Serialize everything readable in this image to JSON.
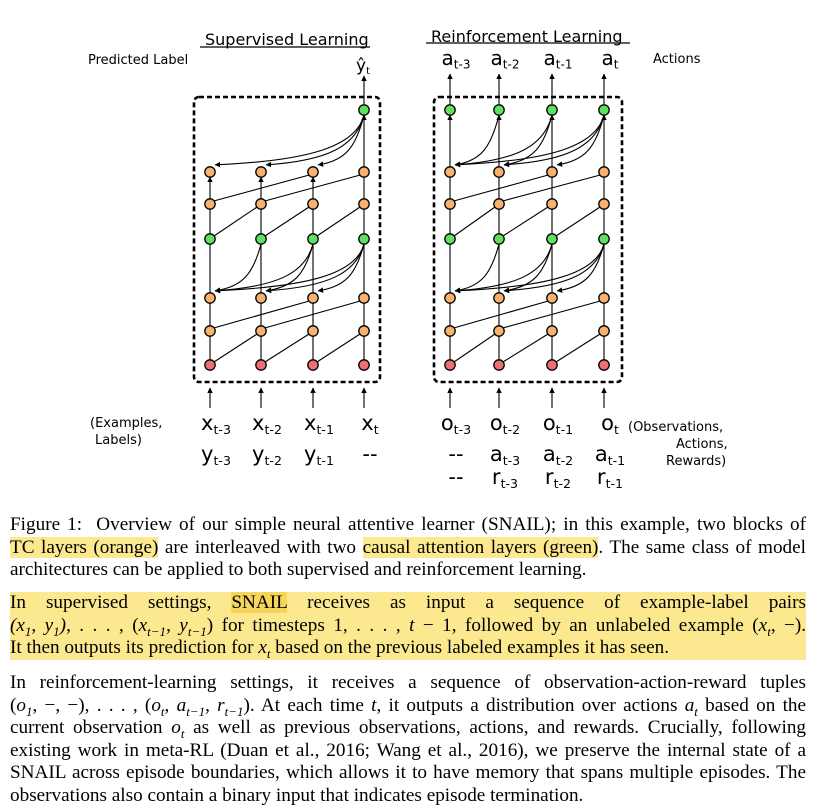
{
  "figure": {
    "sl_title": "Supervised Learning",
    "rl_title": "Reinforcement Learning",
    "predicted_label": "Predicted Label",
    "y_hat": "ŷ",
    "y_hat_sub": "t",
    "actions_label": "Actions",
    "actions": [
      {
        "base": "a",
        "sub": "t-3"
      },
      {
        "base": "a",
        "sub": "t-2"
      },
      {
        "base": "a",
        "sub": "t-1"
      },
      {
        "base": "a",
        "sub": "t"
      }
    ],
    "examples_label_1": "(Examples,",
    "examples_label_2": "Labels)",
    "x_inputs": [
      {
        "base": "x",
        "sub": "t-3"
      },
      {
        "base": "x",
        "sub": "t-2"
      },
      {
        "base": "x",
        "sub": "t-1"
      },
      {
        "base": "x",
        "sub": "t"
      }
    ],
    "y_inputs": [
      {
        "base": "y",
        "sub": "t-3"
      },
      {
        "base": "y",
        "sub": "t-2"
      },
      {
        "base": "y",
        "sub": "t-1"
      },
      {
        "base": "--",
        "sub": ""
      }
    ],
    "obs_inputs": [
      {
        "base": "o",
        "sub": "t-3"
      },
      {
        "base": "o",
        "sub": "t-2"
      },
      {
        "base": "o",
        "sub": "t-1"
      },
      {
        "base": "o",
        "sub": "t"
      }
    ],
    "act_inputs": [
      {
        "base": "--",
        "sub": ""
      },
      {
        "base": "a",
        "sub": "t-3"
      },
      {
        "base": "a",
        "sub": "t-2"
      },
      {
        "base": "a",
        "sub": "t-1"
      }
    ],
    "rew_inputs": [
      {
        "base": "--",
        "sub": ""
      },
      {
        "base": "r",
        "sub": "t-3"
      },
      {
        "base": "r",
        "sub": "t-2"
      },
      {
        "base": "r",
        "sub": "t-1"
      }
    ],
    "obs_label_1": "(Observations,",
    "obs_label_2": "Actions,",
    "obs_label_3": "Rewards)"
  },
  "caption": {
    "prefix": "Figure 1:",
    "text_a": "Overview of our simple neural attentive learner (SNAIL); in this example, two blocks of",
    "hl_tc": "TC layers (orange)",
    "text_b": "are interleaved with two",
    "hl_attn": "causal attention layers (green)",
    "text_c": ". The same class of model",
    "text_d": "architectures can be applied to both supervised and reinforcement learning."
  },
  "para1": {
    "l1_a": "In supervised settings,",
    "l1_snail": "SNAIL",
    "l1_b": "receives as input a sequence of example-label pairs",
    "l2_b": "for timesteps",
    "l2_c": ", followed by an unlabeled example",
    "l3_a": "It then outputs its prediction for",
    "l3_b": "based on the previous labeled examples it has seen."
  },
  "para2": {
    "l1": "In reinforcement-learning settings, it receives a sequence of observation-action-reward tuples",
    "l2_a": ". At each time",
    "l2_b": ", it outputs a distribution over actions",
    "l2_c": "based on the",
    "l3_a": "current observation",
    "l3_b": "as well as previous observations, actions, and rewards. Crucially, following",
    "l4": "existing work in meta-RL (Duan et al., 2016; Wang et al., 2016), we preserve the internal state of a",
    "l5": "SNAIL across episode boundaries, which allows it to have memory that spans multiple episodes. The",
    "l6": "observations also contain a binary input that indicates episode termination."
  },
  "colors": {
    "tc_orange": "#f7b36b",
    "attention_green": "#5fe05f",
    "input_red": "#ee6f6f",
    "highlight": "#fbe88f"
  }
}
